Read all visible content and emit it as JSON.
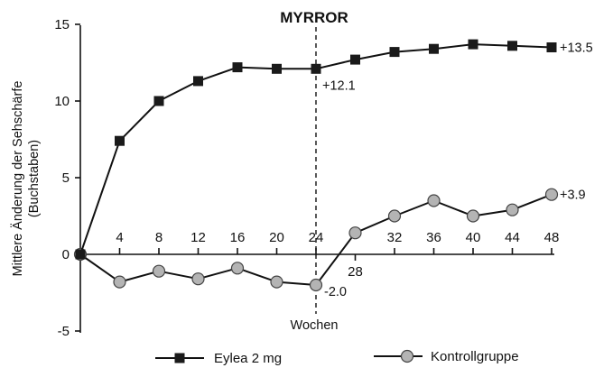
{
  "chart_data": {
    "type": "line",
    "title": "MYRROR",
    "xlabel": "Wochen",
    "ylabel": [
      "Mittlere Änderung der Sehschärfe",
      "(Buchstaben)"
    ],
    "ylim": [
      -5,
      15
    ],
    "xlim": [
      0,
      48
    ],
    "yticks": [
      "15",
      "10",
      "5",
      "0",
      "-5"
    ],
    "xticks_above": [
      "4",
      "8",
      "12",
      "16",
      "20",
      "24",
      "32",
      "36",
      "40",
      "44",
      "48"
    ],
    "xticks_below": [
      "28"
    ],
    "marker_line_x": 24,
    "grid": false,
    "legend_position": "bottom",
    "series": [
      {
        "name": "Eylea 2 mg",
        "marker": "square",
        "x": [
          0,
          4,
          8,
          12,
          16,
          20,
          24,
          28,
          32,
          36,
          40,
          44,
          48
        ],
        "values": [
          0,
          7.4,
          10.0,
          11.3,
          12.2,
          12.1,
          12.1,
          12.7,
          13.2,
          13.4,
          13.7,
          13.6,
          13.5
        ]
      },
      {
        "name": "Kontrollgruppe",
        "marker": "circle",
        "x": [
          0,
          4,
          8,
          12,
          16,
          20,
          24,
          28,
          32,
          36,
          40,
          44,
          48
        ],
        "values": [
          0,
          -1.8,
          -1.1,
          -1.6,
          -0.9,
          -1.8,
          -2.0,
          1.4,
          2.5,
          3.5,
          2.5,
          2.9,
          3.9
        ]
      }
    ],
    "annotations": [
      {
        "text": "+13.5",
        "x": 48,
        "y": 13.5
      },
      {
        "text": "+12.1",
        "x": 24,
        "y": 12.1
      },
      {
        "text": "+3.9",
        "x": 48,
        "y": 3.9
      },
      {
        "text": "-2.0",
        "x": 24,
        "y": -2.0
      }
    ],
    "colors": {
      "line": "#111111",
      "square_fill": "#1a1a1a",
      "circle_fill": "#b4b4b4",
      "circle_stroke": "#444444"
    }
  }
}
